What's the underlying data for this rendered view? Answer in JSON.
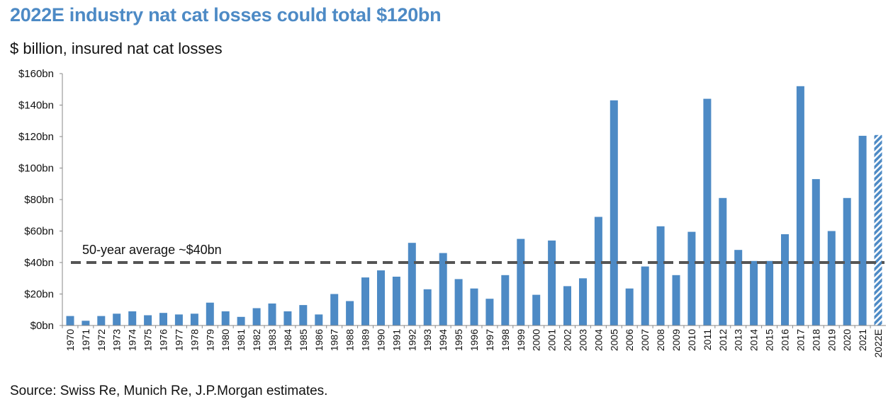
{
  "title": "2022E industry nat cat losses could total $120bn",
  "subtitle": "$ billion, insured nat cat losses",
  "source": "Source: Swiss Re, Munich Re, J.P.Morgan estimates.",
  "colors": {
    "title": "#4d8ac5",
    "bar": "#4d8ac5",
    "average_line": "#555555"
  },
  "chart_data": {
    "type": "bar",
    "categories": [
      "1970",
      "1971",
      "1972",
      "1973",
      "1974",
      "1975",
      "1976",
      "1977",
      "1978",
      "1979",
      "1980",
      "1981",
      "1982",
      "1983",
      "1984",
      "1985",
      "1986",
      "1987",
      "1988",
      "1989",
      "1990",
      "1991",
      "1992",
      "1993",
      "1994",
      "1995",
      "1996",
      "1997",
      "1998",
      "1999",
      "2000",
      "2001",
      "2002",
      "2003",
      "2004",
      "2005",
      "2006",
      "2007",
      "2008",
      "2009",
      "2010",
      "2011",
      "2012",
      "2013",
      "2014",
      "2015",
      "2016",
      "2017",
      "2018",
      "2019",
      "2020",
      "2021",
      "2022E"
    ],
    "values": [
      6,
      3,
      6,
      7.5,
      9,
      6.5,
      8,
      7,
      7.5,
      14.5,
      9,
      5.5,
      11,
      14,
      9,
      13,
      7,
      20,
      15.5,
      30.5,
      35,
      31,
      52.5,
      23,
      46,
      29.5,
      23.5,
      17,
      32,
      55,
      19.5,
      54,
      25,
      30,
      69,
      143,
      23.5,
      37.5,
      63,
      32,
      59.5,
      144,
      81,
      48,
      41,
      41,
      58,
      152,
      93,
      60,
      81,
      120.5,
      121
    ],
    "estimate_categories": [
      "2022E"
    ],
    "ylim": [
      0,
      160
    ],
    "yticks": [
      0,
      20,
      40,
      60,
      80,
      100,
      120,
      140,
      160
    ],
    "ytick_labels": [
      "$0bn",
      "$20bn",
      "$40bn",
      "$60bn",
      "$80bn",
      "$100bn",
      "$120bn",
      "$140bn",
      "$160bn"
    ],
    "grid": false,
    "legend": "none",
    "reference_line": {
      "value": 40,
      "style": "dashed",
      "label": "50-year average ~$40bn"
    }
  }
}
